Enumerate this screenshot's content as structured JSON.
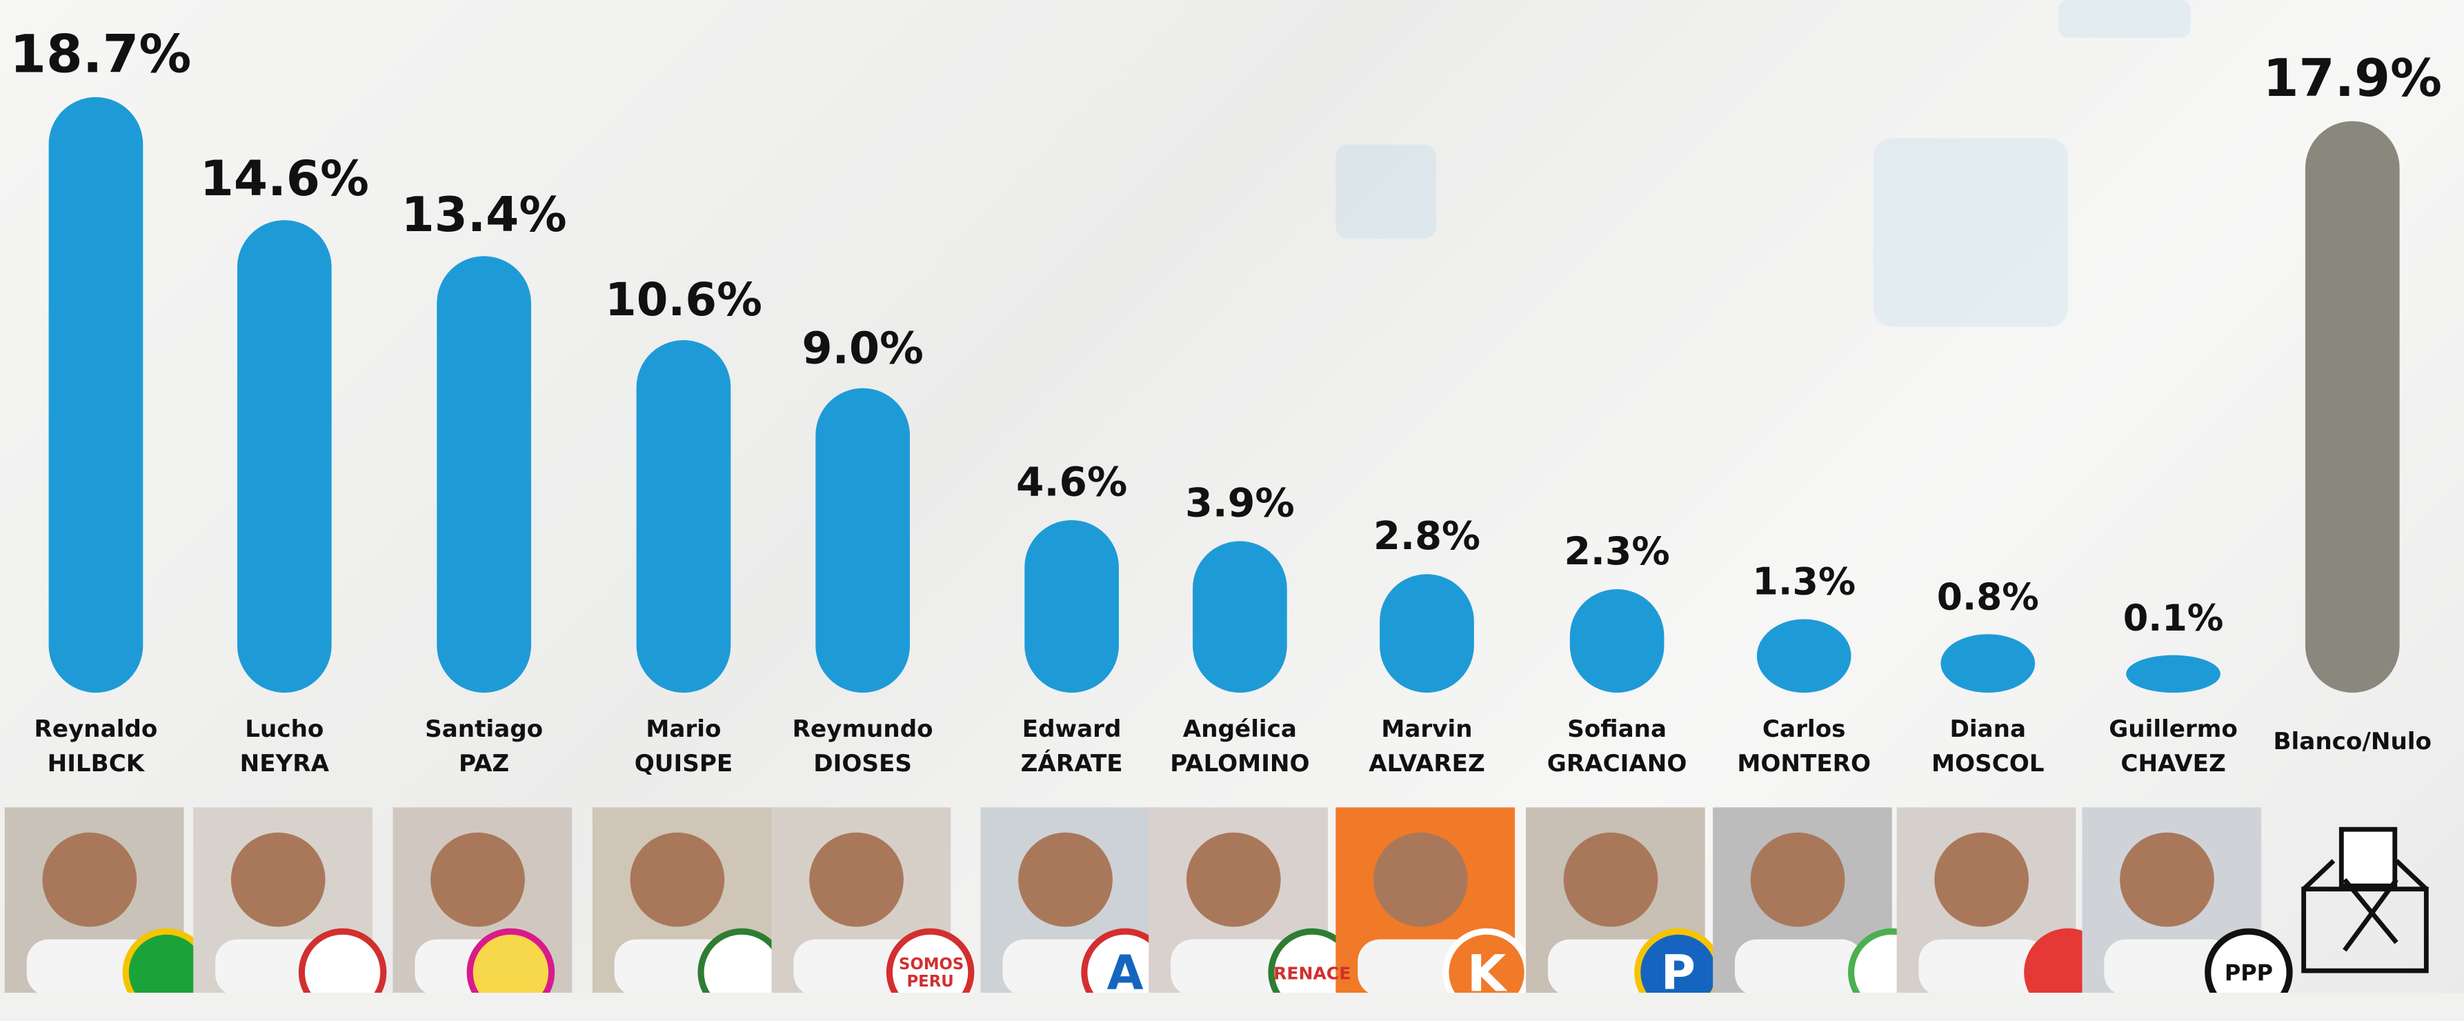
{
  "chart_data": {
    "type": "bar",
    "categories": [
      "Reynaldo HILBCK",
      "Lucho NEYRA",
      "Santiago PAZ",
      "Mario QUISPE",
      "Reymundo DIOSES",
      "Edward ZÁRATE",
      "Angélica PALOMINO",
      "Marvin ALVAREZ",
      "Sofiana GRACIANO",
      "Carlos MONTERO",
      "Diana MOSCOL",
      "Guillermo CHAVEZ",
      "Blanco/Nulo"
    ],
    "values": [
      18.7,
      14.6,
      13.4,
      10.6,
      9.0,
      4.6,
      3.9,
      2.8,
      2.3,
      1.3,
      0.8,
      0.1,
      17.9
    ],
    "value_labels": [
      "18.7%",
      "14.6%",
      "13.4%",
      "10.6%",
      "9.0%",
      "4.6%",
      "3.9%",
      "2.8%",
      "2.3%",
      "1.3%",
      "0.8%",
      "0.1%",
      "17.9%"
    ],
    "colors": [
      "#1e9bd7",
      "#1e9bd7",
      "#1e9bd7",
      "#1e9bd7",
      "#1e9bd7",
      "#1e9bd7",
      "#1e9bd7",
      "#1e9bd7",
      "#1e9bd7",
      "#1e9bd7",
      "#1e9bd7",
      "#1e9bd7",
      "#8a887c"
    ]
  },
  "photo_strip": {
    "logos": [
      "SOMOS PERU",
      "A",
      "RENACE",
      "K",
      "P",
      "PPP"
    ]
  }
}
